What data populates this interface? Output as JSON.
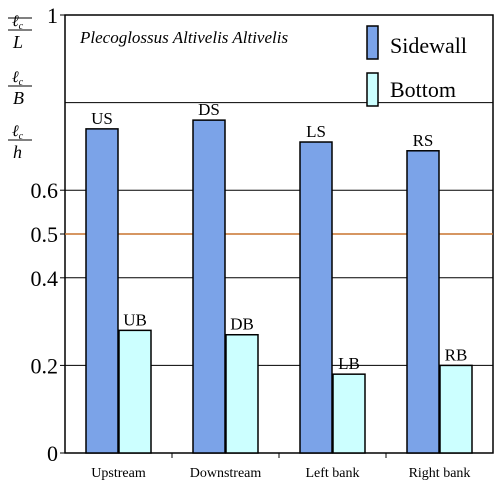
{
  "chart_data": {
    "type": "bar",
    "title": "Plecoglossus Altivelis Altivelis",
    "categories": [
      "Upstream",
      "Downstream",
      "Left bank",
      "Right bank"
    ],
    "series": [
      {
        "name": "Sidewall",
        "values": [
          0.74,
          0.76,
          0.71,
          0.69
        ],
        "bar_labels": [
          "US",
          "DS",
          "LS",
          "RS"
        ],
        "color": "#7ba3e8"
      },
      {
        "name": "Bottom",
        "values": [
          0.28,
          0.27,
          0.18,
          0.2
        ],
        "bar_labels": [
          "UB",
          "DB",
          "LB",
          "RB"
        ],
        "color": "#ccffff"
      }
    ],
    "ylim": [
      0,
      1
    ],
    "y_ticks": [
      {
        "value": 0,
        "label": "0"
      },
      {
        "value": 0.2,
        "label": "0.2"
      },
      {
        "value": 0.4,
        "label": "0.4"
      },
      {
        "value": 0.5,
        "label": "0.5"
      },
      {
        "value": 0.6,
        "label": "0.6"
      },
      {
        "value": 1,
        "label": "1"
      }
    ],
    "gridlines": [
      0.2,
      0.4,
      0.6,
      0.8
    ],
    "reference_line": {
      "value": 0.5,
      "color": "#c8742f"
    },
    "ylabel_parts": [
      {
        "num": "ℓ",
        "sub": "c",
        "den": "L"
      },
      {
        "num": "ℓ",
        "sub": "c",
        "den": "B"
      },
      {
        "num": "ℓ",
        "sub": "c",
        "den": "h"
      }
    ],
    "legend_position": "top-right",
    "grid": true
  }
}
